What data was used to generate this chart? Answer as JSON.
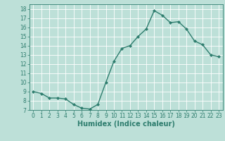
{
  "x": [
    0,
    1,
    2,
    3,
    4,
    5,
    6,
    7,
    8,
    9,
    10,
    11,
    12,
    13,
    14,
    15,
    16,
    17,
    18,
    19,
    20,
    21,
    22,
    23
  ],
  "y": [
    9.0,
    8.8,
    8.3,
    8.3,
    8.2,
    7.6,
    7.2,
    7.1,
    7.6,
    10.0,
    12.3,
    13.7,
    14.0,
    15.0,
    15.8,
    17.8,
    17.3,
    16.5,
    16.6,
    15.8,
    14.5,
    14.1,
    13.0,
    12.8
  ],
  "line_color": "#2e7d6e",
  "marker": "D",
  "marker_size": 2.0,
  "bg_color": "#bde0d8",
  "grid_color": "#ffffff",
  "xlabel": "Humidex (Indice chaleur)",
  "xlim": [
    -0.5,
    23.5
  ],
  "ylim": [
    7,
    18.5
  ],
  "yticks": [
    7,
    8,
    9,
    10,
    11,
    12,
    13,
    14,
    15,
    16,
    17,
    18
  ],
  "xticks": [
    0,
    1,
    2,
    3,
    4,
    5,
    6,
    7,
    8,
    9,
    10,
    11,
    12,
    13,
    14,
    15,
    16,
    17,
    18,
    19,
    20,
    21,
    22,
    23
  ],
  "tick_fontsize": 5.5,
  "xlabel_fontsize": 7.0,
  "linewidth": 1.0
}
